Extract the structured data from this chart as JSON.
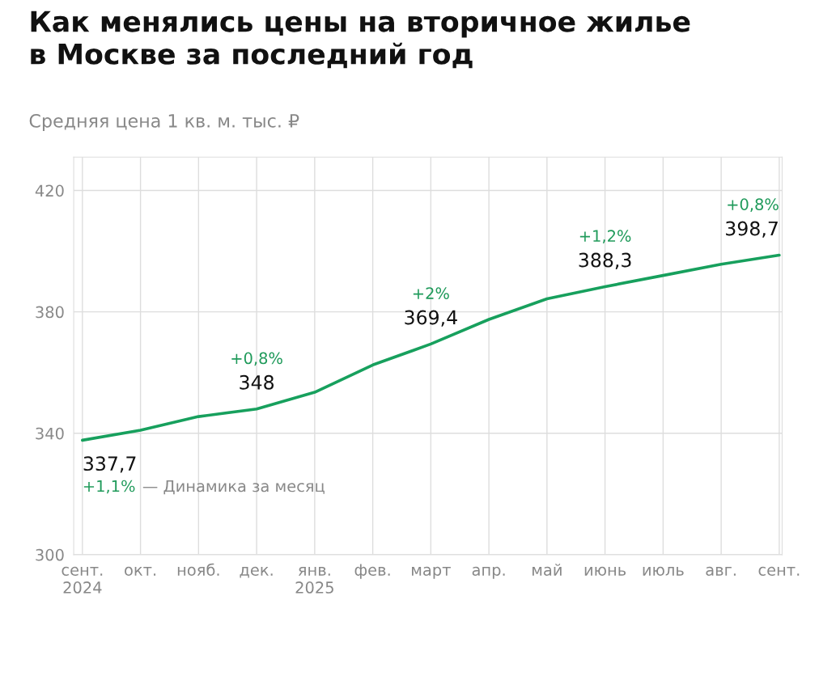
{
  "chart_data": {
    "type": "line",
    "title": "Как менялись цены на вторичное жилье\nв Москве за последний год",
    "subtitle": "Средняя цена 1 кв. м. тыс. ₽",
    "categories": [
      "сент.\n2024",
      "окт.",
      "нояб.",
      "дек.",
      "янв.\n2025",
      "фев.",
      "март",
      "апр.",
      "май",
      "июнь",
      "июль",
      "авг.",
      "сент."
    ],
    "series": [
      {
        "color": "#17a05d",
        "values": [
          337.7,
          341,
          345.5,
          348,
          353.5,
          362.5,
          369.4,
          377.5,
          384.3,
          388.3,
          392,
          395.7,
          398.7
        ],
        "value_labels": [
          "337,7",
          null,
          null,
          "348",
          null,
          null,
          "369,4",
          null,
          null,
          "388,3",
          null,
          null,
          "398,7"
        ]
      }
    ],
    "ylim": [
      300,
      431
    ],
    "yticks": [
      300,
      340,
      380,
      420
    ],
    "grid": true,
    "marker": "none",
    "line_style": "solid",
    "annotations": [
      "+1,1%",
      "+0,8%",
      "+2%",
      "+1,2%",
      "+0,8%",
      "— Динамика за месяц"
    ]
  }
}
